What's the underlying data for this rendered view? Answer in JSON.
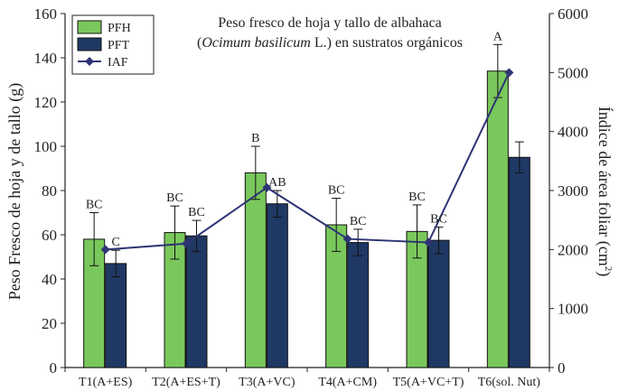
{
  "chart_data": {
    "type": "bar",
    "title_line1": "Peso fresco de hoja y tallo de albahaca",
    "title_line2_italic": "Ocimum basilicum",
    "title_line2_rest": " L.) en sustratos orgánicos",
    "title_line2_open": "(",
    "categories": [
      "T1(A+ES)",
      "T2(A+ES+T)",
      "T3(A+VC)",
      "T4(A+CM)",
      "T5(A+VC+T)",
      "T6(sol. Nut)"
    ],
    "ylabel_left": "Peso Fresco de hoja y de tallo (g)",
    "ylabel_right_main": "Índice de área foliar (cm",
    "ylabel_right_sup": "2",
    "ylabel_right_close": ")",
    "ylim_left": [
      0,
      160
    ],
    "yticks_left": [
      "0",
      "20",
      "40",
      "60",
      "80",
      "100",
      "120",
      "140",
      "160"
    ],
    "ylim_right": [
      0,
      6000
    ],
    "yticks_right": [
      "0",
      "1000",
      "2000",
      "3000",
      "4000",
      "5000",
      "6000"
    ],
    "series": [
      {
        "name": "PFH",
        "kind": "bar",
        "color": "#7ac85c",
        "values": [
          58,
          61,
          88,
          64.5,
          61.5,
          134
        ],
        "errors": [
          12,
          12,
          12,
          12,
          12,
          12
        ],
        "letters": [
          "BC",
          "BC",
          "B",
          "BC",
          "BC",
          "A"
        ]
      },
      {
        "name": "PFT",
        "kind": "bar",
        "color": "#1f3864",
        "values": [
          47,
          59.5,
          74,
          56.5,
          57.5,
          95
        ],
        "errors": [
          6,
          7,
          6,
          6,
          6,
          7
        ],
        "letters": [
          "C",
          "BC",
          "AB",
          "BC",
          "BC",
          ""
        ]
      },
      {
        "name": "IAF",
        "kind": "line",
        "axis": "right",
        "color": "#2e3474",
        "values": [
          2000,
          2100,
          3050,
          2180,
          2120,
          5000
        ]
      }
    ],
    "legend_position": "top-left",
    "grid": false
  }
}
